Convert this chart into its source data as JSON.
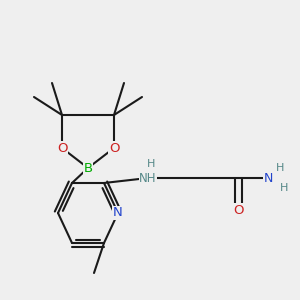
{
  "bg_color": "#efefef",
  "bond_color": "#1a1a1a",
  "bond_width": 1.5,
  "atom_colors": {
    "N": "#2244cc",
    "O": "#cc2222",
    "B": "#00aa00",
    "NH": "#558888",
    "H": "#558888"
  },
  "font_size": 8.0,
  "fig_size": [
    3.0,
    3.0
  ],
  "dpi": 100,
  "scale": 1.0
}
